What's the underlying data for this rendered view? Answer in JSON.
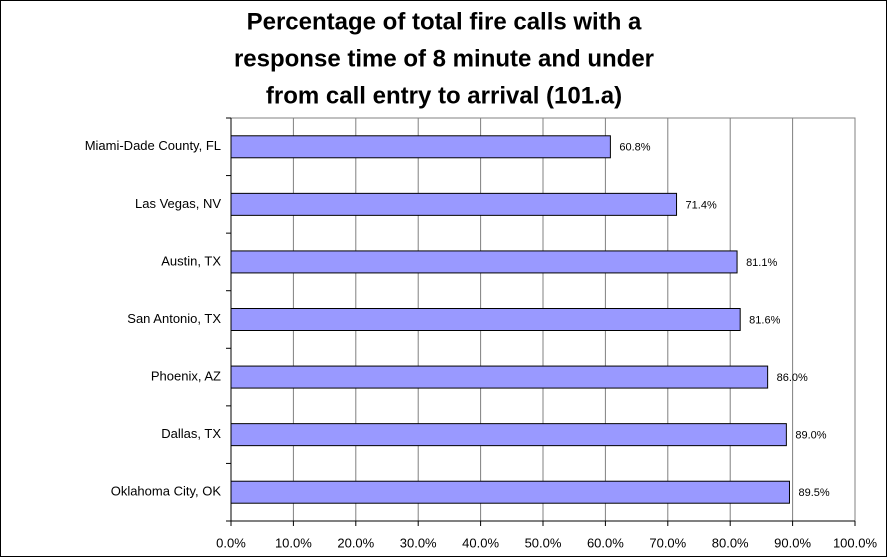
{
  "chart_data": {
    "type": "bar",
    "orientation": "horizontal",
    "title": [
      "Percentage of total fire calls with a",
      "response time of 8 minute and under",
      "from call entry to arrival (101.a)"
    ],
    "categories": [
      "Miami-Dade County, FL",
      "Las Vegas, NV",
      "Austin, TX",
      "San Antonio, TX",
      "Phoenix, AZ",
      "Dallas, TX",
      "Oklahoma City, OK"
    ],
    "values": [
      60.8,
      71.4,
      81.1,
      81.6,
      86.0,
      89.0,
      89.5
    ],
    "value_labels": [
      "60.8%",
      "71.4%",
      "81.1%",
      "81.6%",
      "86.0%",
      "89.0%",
      "89.5%"
    ],
    "color": "#9999ff",
    "xlim": [
      0,
      100
    ],
    "xticks": [
      {
        "value": 0,
        "label": "0.0%"
      },
      {
        "value": 10,
        "label": "10.0%"
      },
      {
        "value": 20,
        "label": "20.0%"
      },
      {
        "value": 30,
        "label": "30.0%"
      },
      {
        "value": 40,
        "label": "40.0%"
      },
      {
        "value": 50,
        "label": "50.0%"
      },
      {
        "value": 60,
        "label": "60.0%"
      },
      {
        "value": 70,
        "label": "70.0%"
      },
      {
        "value": 80,
        "label": "80.0%"
      },
      {
        "value": 90,
        "label": "90.0%"
      },
      {
        "value": 100,
        "label": "100.0%"
      }
    ],
    "grid": true
  }
}
